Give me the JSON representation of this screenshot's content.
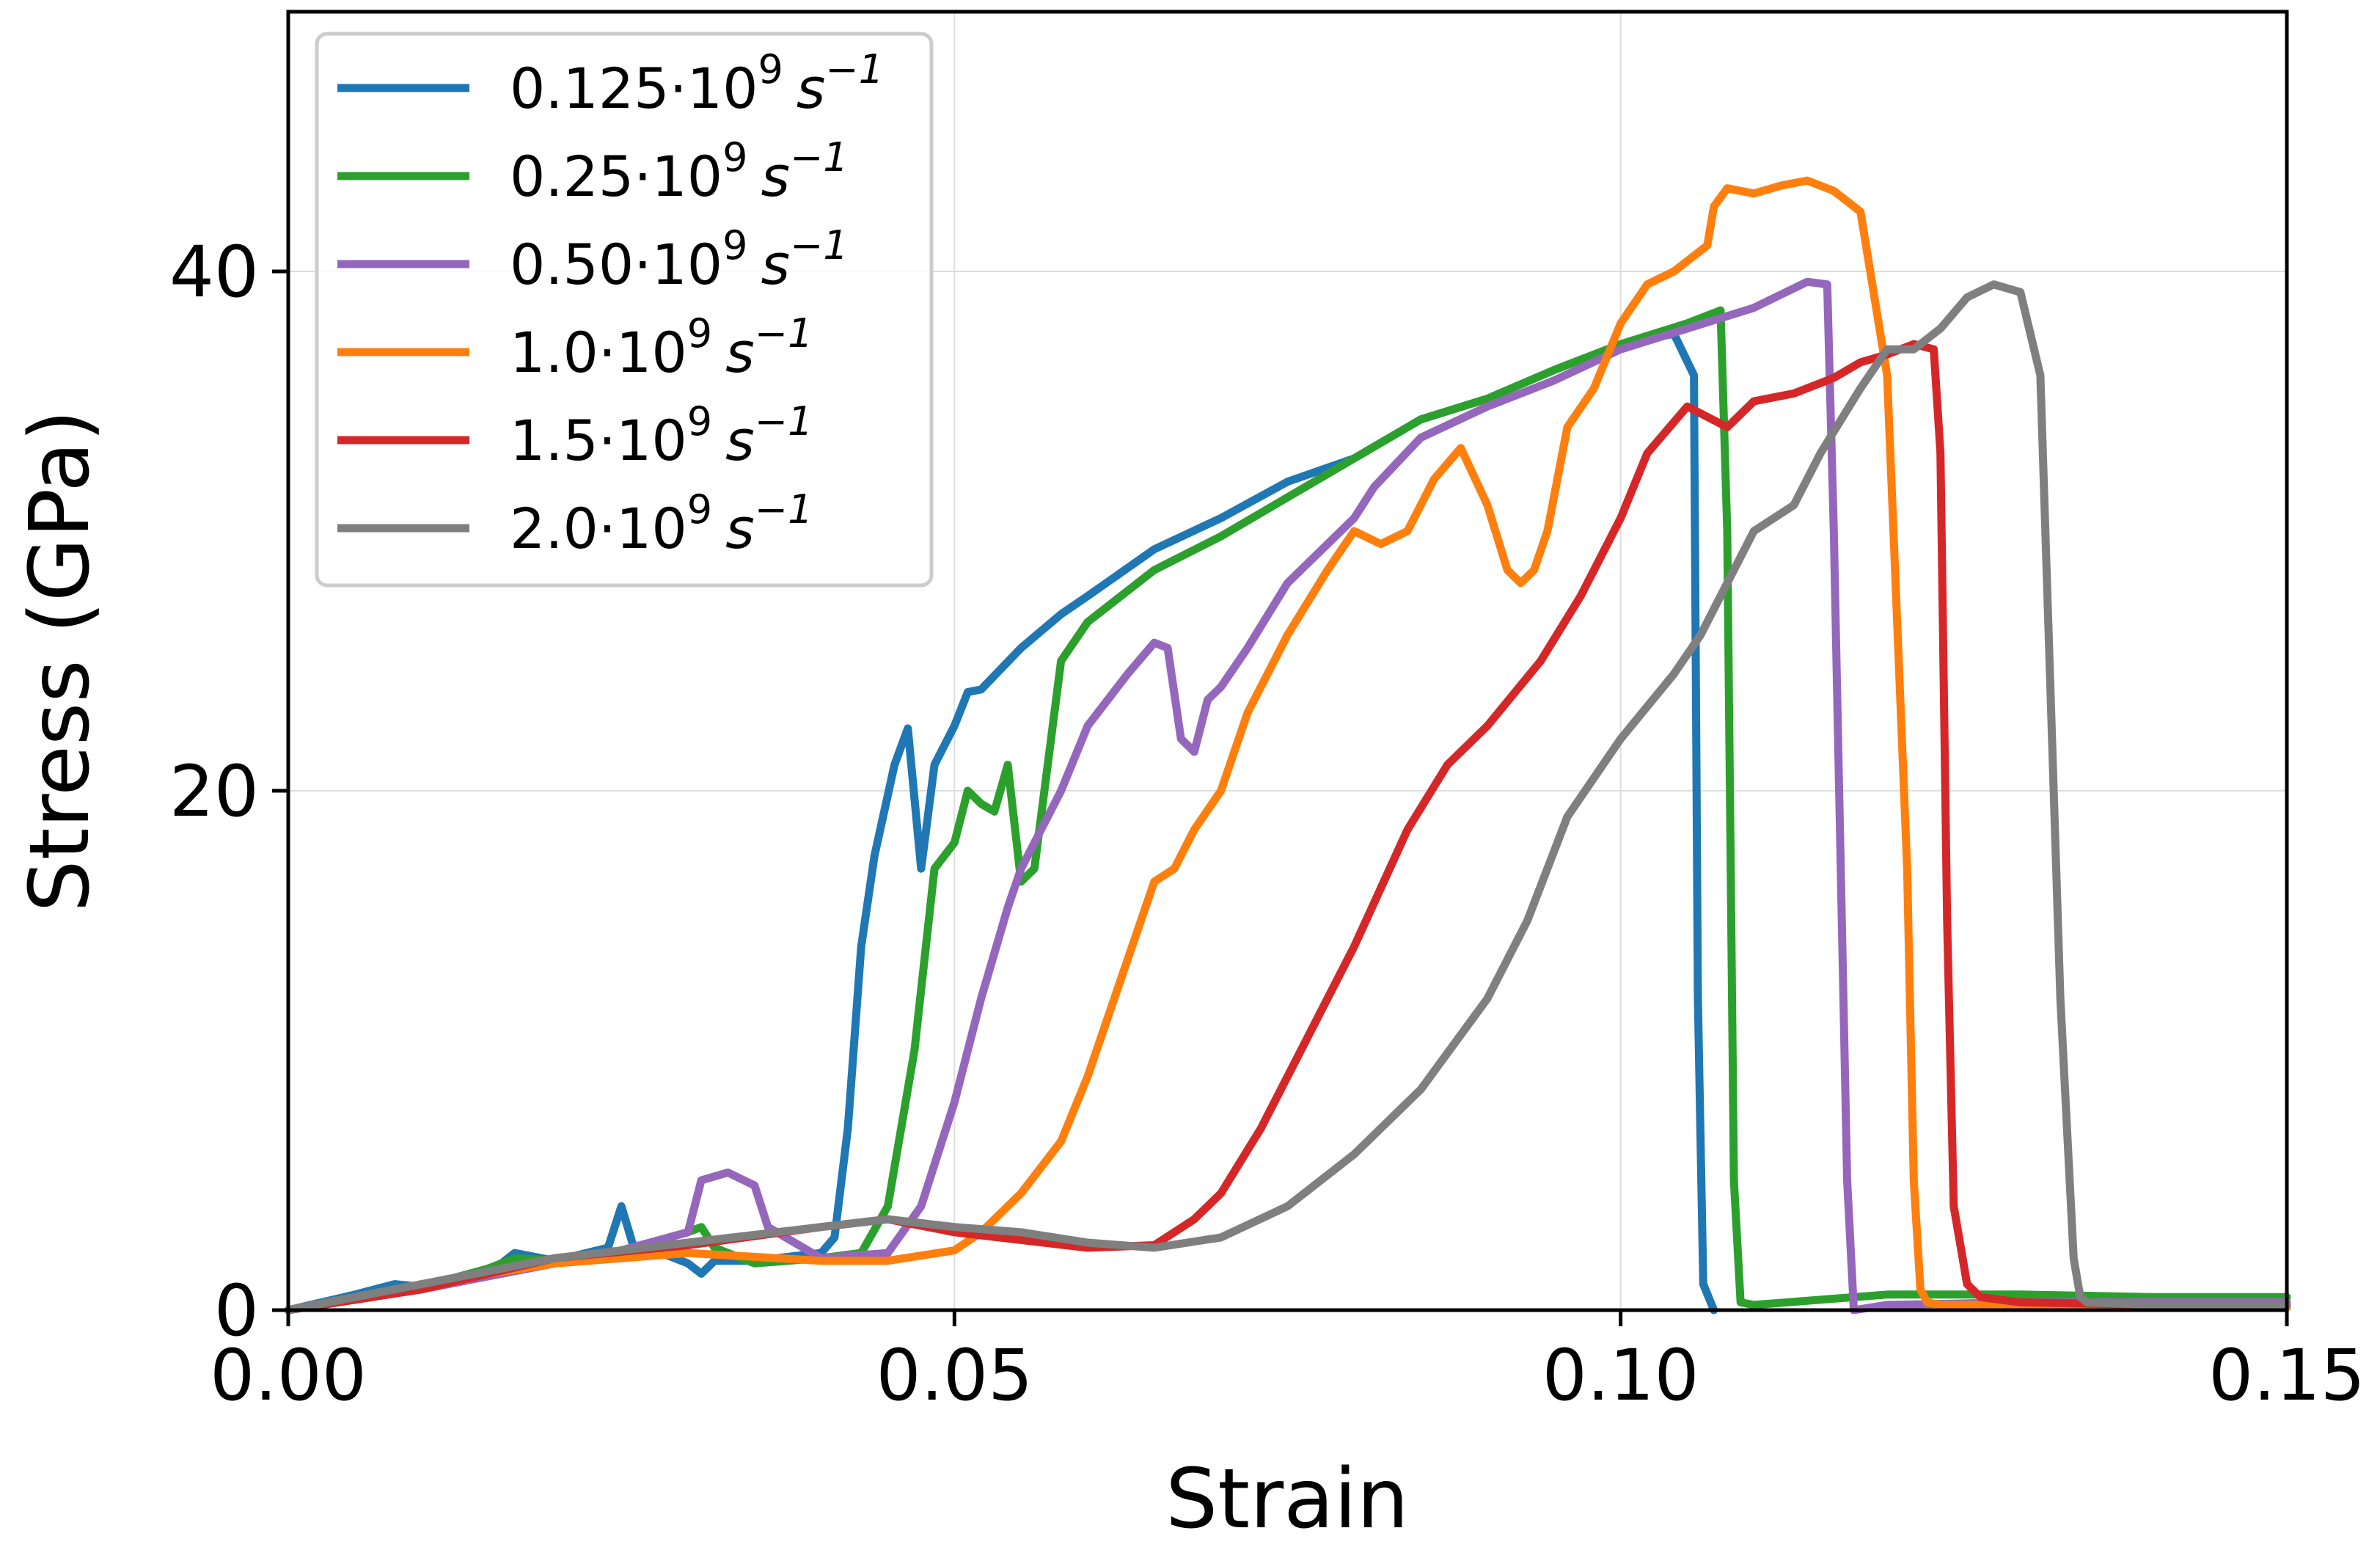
{
  "chart_data": {
    "type": "line",
    "xlabel": "Strain",
    "ylabel": "Stress (GPa)",
    "xlim": [
      0.0,
      0.15
    ],
    "ylim": [
      0,
      50
    ],
    "grid": true,
    "legend_position": "top-left",
    "xticks": [
      {
        "value": 0.0,
        "label": "0.00"
      },
      {
        "value": 0.05,
        "label": "0.05"
      },
      {
        "value": 0.1,
        "label": "0.10"
      },
      {
        "value": 0.15,
        "label": "0.15"
      }
    ],
    "yticks": [
      {
        "value": 0,
        "label": "0"
      },
      {
        "value": 20,
        "label": "20"
      },
      {
        "value": 40,
        "label": "40"
      }
    ],
    "series": [
      {
        "name": "0.125·10⁹ s⁻¹",
        "label_base": "0.125·10",
        "label_exp": "9",
        "label_unit": "s",
        "label_unit_exp": "−1",
        "color": "#1f77b4",
        "x": [
          0.0,
          0.005,
          0.008,
          0.01,
          0.015,
          0.017,
          0.02,
          0.024,
          0.025,
          0.026,
          0.028,
          0.03,
          0.031,
          0.032,
          0.035,
          0.04,
          0.041,
          0.042,
          0.043,
          0.044,
          0.0455,
          0.0465,
          0.0475,
          0.0485,
          0.05,
          0.051,
          0.052,
          0.055,
          0.058,
          0.06,
          0.065,
          0.07,
          0.075,
          0.08,
          0.085,
          0.09,
          0.095,
          0.1,
          0.104,
          0.1055,
          0.1058,
          0.1062,
          0.107
        ],
        "y": [
          0,
          0.6,
          1,
          0.9,
          1.4,
          2.2,
          1.9,
          2.4,
          4,
          2.3,
          2.2,
          1.8,
          1.4,
          1.9,
          1.9,
          2.2,
          2.8,
          7,
          14,
          17.5,
          21,
          22.4,
          17,
          21,
          22.5,
          23.8,
          23.9,
          25.5,
          26.8,
          27.5,
          29.3,
          30.5,
          31.9,
          32.8,
          34.3,
          35.1,
          36.2,
          37.2,
          37.6,
          36,
          12,
          1,
          0
        ]
      },
      {
        "name": "0.25·10⁹ s⁻¹",
        "label_base": "0.25·10",
        "label_exp": "9",
        "label_unit": "s",
        "label_unit_exp": "−1",
        "color": "#2ca02c",
        "x": [
          0.0,
          0.01,
          0.015,
          0.017,
          0.02,
          0.025,
          0.03,
          0.031,
          0.032,
          0.035,
          0.04,
          0.043,
          0.045,
          0.047,
          0.0485,
          0.05,
          0.051,
          0.052,
          0.053,
          0.054,
          0.055,
          0.056,
          0.058,
          0.06,
          0.065,
          0.07,
          0.075,
          0.08,
          0.085,
          0.09,
          0.095,
          0.1,
          0.105,
          0.1075,
          0.108,
          0.1085,
          0.109,
          0.11,
          0.115,
          0.12,
          0.13,
          0.14,
          0.15
        ],
        "y": [
          0,
          0.9,
          1.6,
          2,
          1.9,
          2.3,
          3,
          3.2,
          2.4,
          1.8,
          2,
          2.2,
          4,
          10,
          17,
          18,
          20,
          19.5,
          19.2,
          21,
          16.5,
          17,
          25,
          26.5,
          28.5,
          29.8,
          31.3,
          32.8,
          34.3,
          35.1,
          36.2,
          37.2,
          38,
          38.5,
          30,
          5,
          0.3,
          0.2,
          0.4,
          0.6,
          0.6,
          0.5,
          0.5
        ]
      },
      {
        "name": "0.50·10⁹ s⁻¹",
        "label_base": "0.50·10",
        "label_exp": "9",
        "label_unit": "s",
        "label_unit_exp": "−1",
        "color": "#9467bd",
        "x": [
          0.0,
          0.01,
          0.02,
          0.025,
          0.03,
          0.031,
          0.033,
          0.035,
          0.036,
          0.04,
          0.045,
          0.0475,
          0.05,
          0.052,
          0.054,
          0.055,
          0.058,
          0.06,
          0.063,
          0.065,
          0.066,
          0.067,
          0.068,
          0.069,
          0.07,
          0.072,
          0.075,
          0.08,
          0.0815,
          0.085,
          0.09,
          0.095,
          0.1,
          0.105,
          0.11,
          0.114,
          0.1155,
          0.116,
          0.117,
          0.1175,
          0.12,
          0.13,
          0.14,
          0.15
        ],
        "y": [
          0,
          0.8,
          1.8,
          2.3,
          3,
          5,
          5.3,
          4.8,
          3.2,
          2,
          2.2,
          4,
          8,
          12,
          15.5,
          17,
          20,
          22.5,
          24.5,
          25.7,
          25.5,
          22,
          21.5,
          23.5,
          24,
          25.5,
          28,
          30.5,
          31.7,
          33.6,
          34.8,
          35.8,
          37,
          37.8,
          38.6,
          39.6,
          39.5,
          30,
          5,
          0,
          0.2,
          0.3,
          0.3,
          0.3
        ]
      },
      {
        "name": "1.0·10⁹ s⁻¹",
        "label_base": "1.0·10",
        "label_exp": "9",
        "label_unit": "s",
        "label_unit_exp": "−1",
        "color": "#ff7f0e",
        "x": [
          0.0,
          0.01,
          0.02,
          0.03,
          0.04,
          0.045,
          0.05,
          0.052,
          0.055,
          0.058,
          0.06,
          0.062,
          0.065,
          0.0665,
          0.068,
          0.07,
          0.072,
          0.075,
          0.078,
          0.08,
          0.082,
          0.084,
          0.086,
          0.088,
          0.09,
          0.0915,
          0.0925,
          0.0935,
          0.0945,
          0.096,
          0.098,
          0.1,
          0.102,
          0.104,
          0.1065,
          0.107,
          0.108,
          0.11,
          0.112,
          0.114,
          0.116,
          0.118,
          0.12,
          0.1215,
          0.122,
          0.1225,
          0.123,
          0.124,
          0.125,
          0.13,
          0.14,
          0.15
        ],
        "y": [
          0,
          1,
          1.8,
          2.2,
          1.9,
          1.9,
          2.3,
          3,
          4.5,
          6.5,
          9,
          12,
          16.5,
          17,
          18.5,
          20,
          23,
          26,
          28.5,
          30,
          29.5,
          30,
          32,
          33.2,
          31,
          28.5,
          28,
          28.5,
          30,
          34,
          35.5,
          38,
          39.5,
          40,
          41,
          42.5,
          43.2,
          43,
          43.3,
          43.5,
          43.1,
          42.3,
          36,
          17,
          5,
          0.8,
          0.3,
          0.2,
          0.2,
          0.2,
          0.1,
          0.1
        ]
      },
      {
        "name": "1.5·10⁹ s⁻¹",
        "label_base": "1.5·10",
        "label_exp": "9",
        "label_unit": "s",
        "label_unit_exp": "−1",
        "color": "#d62728",
        "x": [
          0.0,
          0.01,
          0.02,
          0.03,
          0.04,
          0.045,
          0.05,
          0.055,
          0.06,
          0.065,
          0.068,
          0.07,
          0.073,
          0.076,
          0.08,
          0.084,
          0.087,
          0.09,
          0.094,
          0.097,
          0.1,
          0.102,
          0.105,
          0.108,
          0.11,
          0.113,
          0.116,
          0.118,
          0.12,
          0.122,
          0.1235,
          0.124,
          0.1245,
          0.125,
          0.126,
          0.127,
          0.13,
          0.14,
          0.15
        ],
        "y": [
          0,
          0.8,
          2,
          2.5,
          3.2,
          3.5,
          3,
          2.7,
          2.4,
          2.5,
          3.5,
          4.5,
          7,
          10,
          14,
          18.5,
          21,
          22.5,
          25,
          27.5,
          30.5,
          33,
          34.8,
          34,
          35,
          35.3,
          35.9,
          36.5,
          36.8,
          37.2,
          37,
          33,
          15,
          4,
          1,
          0.5,
          0.3,
          0.2,
          0.2
        ]
      },
      {
        "name": "2.0·10⁹ s⁻¹",
        "label_base": "2.0·10",
        "label_exp": "9",
        "label_unit": "s",
        "label_unit_exp": "−1",
        "color": "#7f7f7f",
        "x": [
          0.0,
          0.01,
          0.02,
          0.03,
          0.04,
          0.045,
          0.05,
          0.055,
          0.06,
          0.065,
          0.07,
          0.075,
          0.08,
          0.085,
          0.09,
          0.093,
          0.096,
          0.1,
          0.104,
          0.106,
          0.108,
          0.11,
          0.113,
          0.115,
          0.118,
          0.12,
          0.122,
          0.124,
          0.126,
          0.128,
          0.13,
          0.1315,
          0.132,
          0.133,
          0.134,
          0.1345,
          0.135,
          0.14,
          0.15
        ],
        "y": [
          0,
          1,
          2,
          2.6,
          3.2,
          3.5,
          3.2,
          3,
          2.6,
          2.4,
          2.8,
          4,
          6,
          8.5,
          12,
          15,
          19,
          22,
          24.5,
          26,
          28,
          30,
          31,
          33,
          35.5,
          37,
          37,
          37.8,
          39,
          39.5,
          39.2,
          36,
          28,
          12,
          2,
          0.5,
          0.3,
          0.2,
          0.2
        ]
      }
    ]
  }
}
